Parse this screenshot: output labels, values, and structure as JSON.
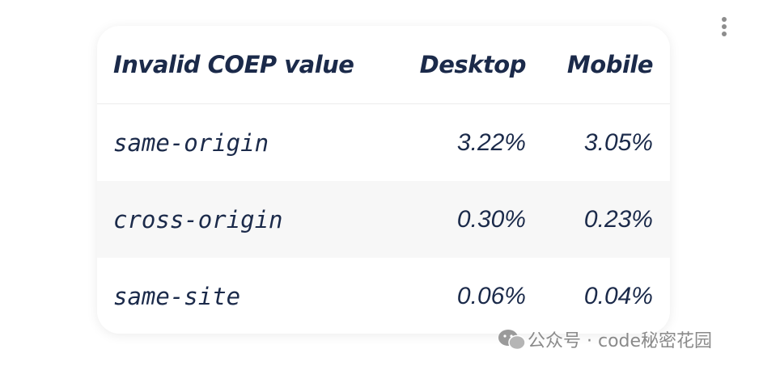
{
  "table": {
    "header": [
      "Invalid COEP value",
      "Desktop",
      "Mobile"
    ],
    "rows": [
      [
        "same-origin",
        "3.22%",
        "3.05%"
      ],
      [
        "cross-origin",
        "0.30%",
        "0.23%"
      ],
      [
        "same-site",
        "0.06%",
        "0.04%"
      ]
    ]
  },
  "watermark": "公众号 · code秘密花园"
}
